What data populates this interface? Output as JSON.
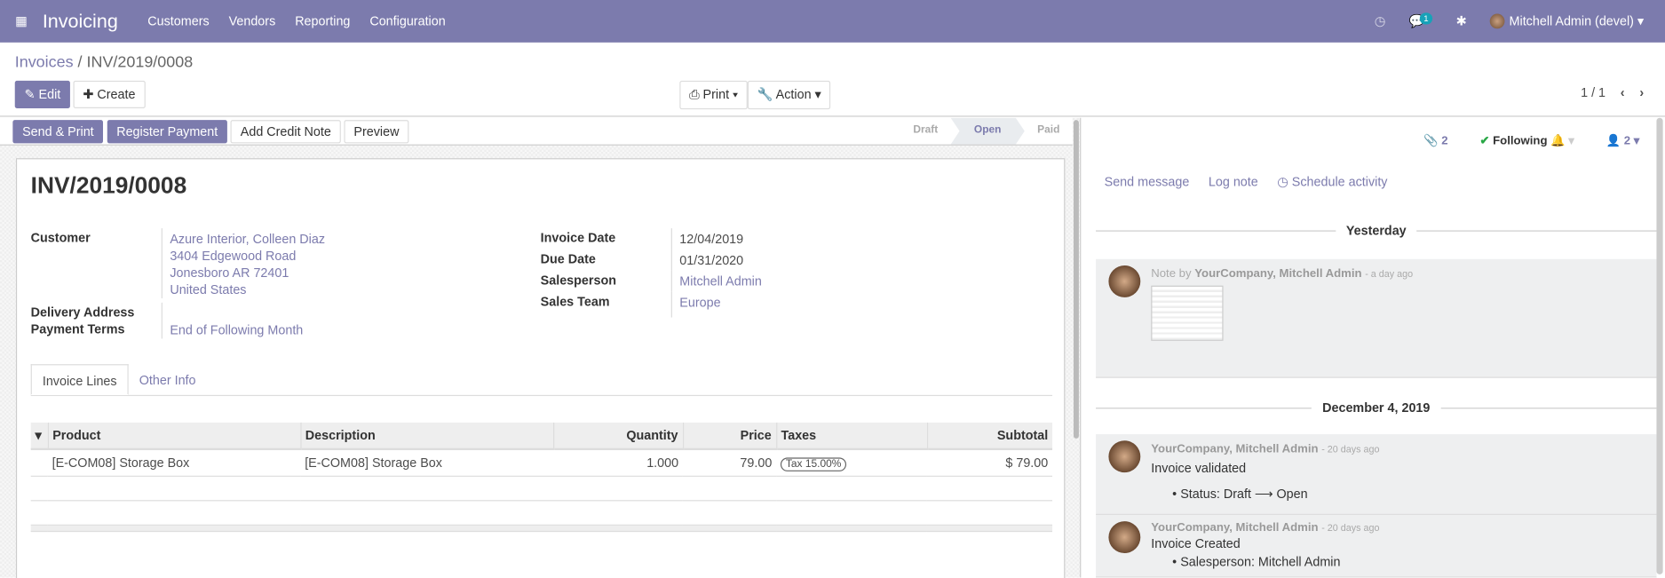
{
  "navbar": {
    "app": "Invoicing",
    "menu": [
      "Customers",
      "Vendors",
      "Reporting",
      "Configuration"
    ],
    "messages_badge": "1",
    "user": "Mitchell Admin (devel)",
    "color": "#7c7bad"
  },
  "breadcrumb": {
    "parent": "Invoices",
    "current": "INV/2019/0008"
  },
  "toolbar": {
    "edit": "Edit",
    "create": "Create",
    "print": "Print",
    "action": "Action",
    "pager": "1 / 1"
  },
  "statusbar": {
    "buttons": [
      "Send & Print",
      "Register Payment",
      "Add Credit Note",
      "Preview"
    ],
    "stages": [
      "Draft",
      "Open",
      "Paid"
    ],
    "current": "Open"
  },
  "invoice": {
    "number": "INV/2019/0008",
    "customer_label": "Customer",
    "customer": [
      "Azure Interior, Colleen Diaz",
      "3404 Edgewood Road",
      "Jonesboro AR 72401",
      "United States"
    ],
    "delivery_label": "Delivery Address",
    "terms_label": "Payment Terms",
    "terms": "End of Following Month",
    "invoice_date_label": "Invoice Date",
    "invoice_date": "12/04/2019",
    "due_label": "Due Date",
    "due": "01/31/2020",
    "salesperson_label": "Salesperson",
    "salesperson": "Mitchell Admin",
    "team_label": "Sales Team",
    "team": "Europe"
  },
  "tabs": [
    "Invoice Lines",
    "Other Info"
  ],
  "lines": {
    "headers": [
      "Product",
      "Description",
      "Quantity",
      "Price",
      "Taxes",
      "Subtotal"
    ],
    "rows": [
      {
        "product": "[E-COM08] Storage Box",
        "description": "[E-COM08] Storage Box",
        "quantity": "1.000",
        "price": "79.00",
        "tax": "Tax 15.00%",
        "subtotal": "$ 79.00"
      }
    ]
  },
  "chatter": {
    "attachments": "2",
    "following": "Following",
    "followers": "2",
    "send": "Send message",
    "log": "Log note",
    "schedule": "Schedule activity",
    "sep1": "Yesterday",
    "note_prefix": "Note by",
    "author": "YourCompany, Mitchell Admin",
    "ago1": "- a day ago",
    "sep2": "December 4, 2019",
    "ago2": "- 20 days ago",
    "m2_body": "Invoice validated",
    "m2_track": "Status: Draft ⟶ Open",
    "ago3": "- 20 days ago",
    "m3_body": "Invoice Created",
    "m3_track": "Salesperson: Mitchell Admin"
  }
}
